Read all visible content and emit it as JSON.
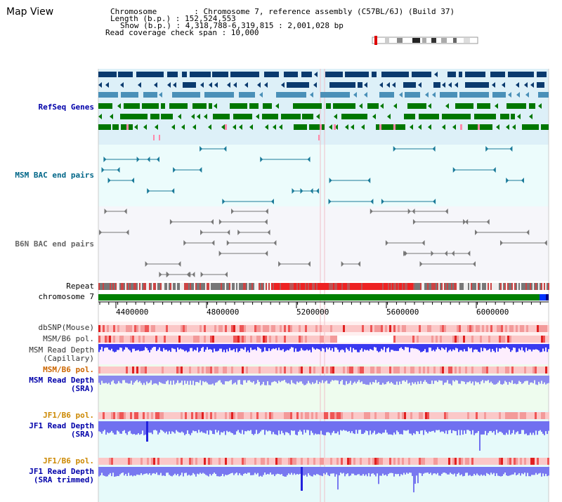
{
  "header": {
    "title": "Map View",
    "chromosome": "Chromosome        : Chromosome 7, reference assembly (C57BL/6J) (Build 37)",
    "length": "Length (b.p.) : 152,524,553",
    "show": "Show (b.p.) : 4,318,788-6,319,815 : 2,001,028 bp",
    "read_coverage": "Read coverage check span : 10,000"
  },
  "tracks": {
    "refseq": {
      "label": "RefSeq Genes",
      "color": "#0000aa"
    },
    "msm_bac": {
      "label": "MSM BAC end pairs",
      "color": "#006688"
    },
    "b6n_bac": {
      "label": "B6N BAC end pairs",
      "color": "#555555"
    },
    "repeat": {
      "label": "Repeat"
    },
    "chromosome": {
      "label": "chromosome 7"
    },
    "dbsnp": {
      "label": "dbSNP(Mouse)"
    },
    "msm_b6_pol_1": {
      "label": "MSM/B6 pol."
    },
    "msm_depth_cap": {
      "label": "MSM Read Depth\n(Capillary)"
    },
    "msm_b6_pol_2": {
      "label": "MSM/B6 pol.",
      "color": "#cc6600"
    },
    "msm_depth_sra": {
      "label": "MSM Read Depth\n(SRA)",
      "color": "#0000aa"
    },
    "jf1_b6_pol_1": {
      "label": "JF1/B6 pol.",
      "color": "#cc8800"
    },
    "jf1_depth_sra": {
      "label": "JF1 Read Depth\n(SRA)",
      "color": "#0000aa"
    },
    "jf1_b6_pol_2": {
      "label": "JF1/B6 pol.",
      "color": "#cc8800"
    },
    "jf1_depth_trim": {
      "label": "JF1 Read Depth\n(SRA trimmed)",
      "color": "#0000aa"
    }
  },
  "ruler": {
    "ticks": [
      "4400000",
      "4800000",
      "5200000",
      "5600000",
      "6000000"
    ]
  },
  "colors": {
    "refseq_dark": "#0a3a6e",
    "refseq_mid": "#4a90b8",
    "refseq_green": "#007700",
    "refseq_bg": "#ddf0f8",
    "msm_bg": "#ecfcfc",
    "b6n_bg": "#f6f6fa",
    "chrom_green": "#008000",
    "depth_blue": "#3333ee",
    "depth_light": "#8888ff"
  }
}
